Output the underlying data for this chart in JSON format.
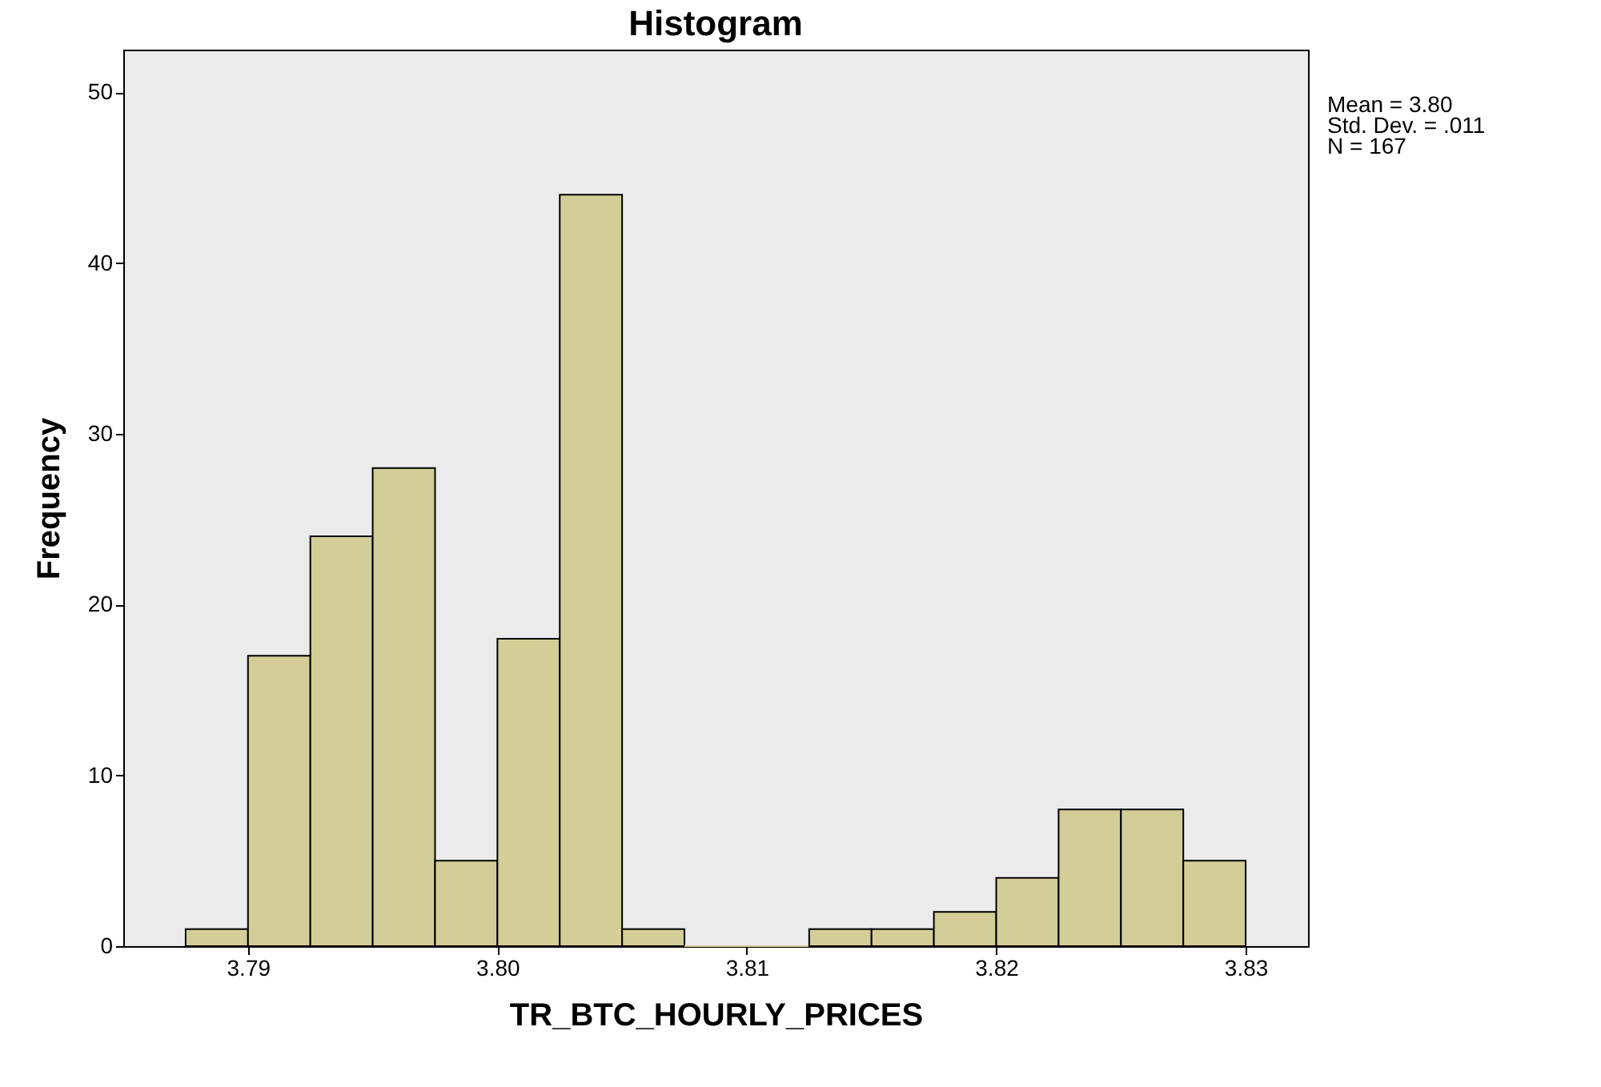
{
  "chart_data": {
    "type": "histogram",
    "title": "Histogram",
    "xlabel": "TR_BTC_HOURLY_PRICES",
    "ylabel": "Frequency",
    "bins": [
      3.7875,
      3.79,
      3.7925,
      3.795,
      3.7975,
      3.8,
      3.8025,
      3.805,
      3.8075,
      3.81,
      3.8125,
      3.815,
      3.8175,
      3.82,
      3.8225,
      3.825,
      3.8275,
      3.83
    ],
    "values": [
      1,
      17,
      24,
      28,
      5,
      18,
      44,
      1,
      0,
      0,
      1,
      1,
      2,
      4,
      8,
      8,
      5
    ],
    "color": "#d3ce97",
    "xlim": [
      3.785,
      3.8325
    ],
    "xticks": [
      3.79,
      {
        "value": 3.8,
        "label": "3.80"
      },
      3.81,
      3.82,
      3.83
    ],
    "ylim": [
      0,
      52.5
    ],
    "yticks": [
      0,
      10,
      20,
      30,
      40,
      50
    ],
    "annotations": [
      "Mean = 3.80",
      "Std. Dev. = .011",
      "N = 167"
    ],
    "grid": false
  }
}
